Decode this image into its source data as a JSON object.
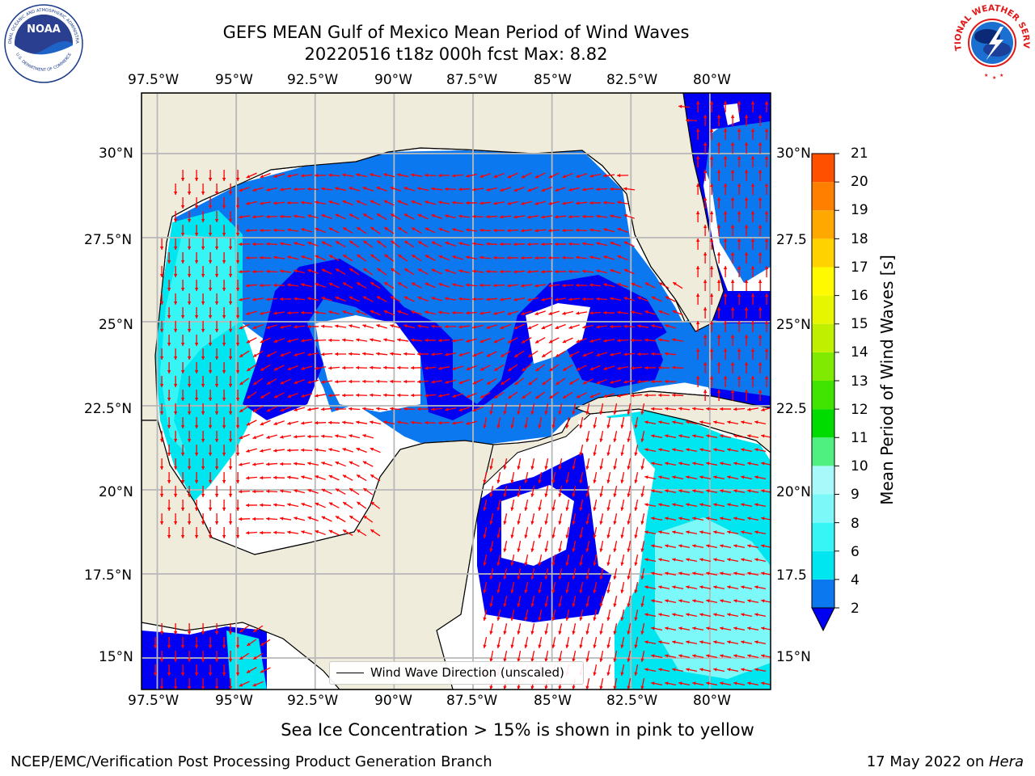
{
  "header": {
    "title_line1": "GEFS MEAN Gulf of Mexico Mean Period of Wind Waves",
    "title_line2": "20220516 t18z 000h fcst   Max: 8.82"
  },
  "logos": {
    "left": {
      "name": "NOAA",
      "ring_text": "NATIONAL OCEANIC AND ATMOSPHERIC ADMINISTRATION",
      "bottom_text": "U.S. DEPARTMENT OF COMMERCE"
    },
    "right": {
      "ring_text": "NATIONAL WEATHER SERVICE"
    }
  },
  "axes": {
    "lon_labels": [
      "97.5°W",
      "95°W",
      "92.5°W",
      "90°W",
      "87.5°W",
      "85°W",
      "82.5°W",
      "80°W"
    ],
    "lat_labels_left": [
      "30°N",
      "27.5°N",
      "25°N",
      "22.5°N",
      "20°N",
      "17.5°N",
      "15°N"
    ],
    "lat_labels_right": [
      "30°N",
      "27.5",
      "25°N",
      "22.5",
      "20°N",
      "17.5",
      "15°N"
    ]
  },
  "colorbar": {
    "label": "Mean Period of Wind Waves [s]",
    "ticks": [
      "2",
      "4",
      "6",
      "8",
      "9",
      "10",
      "11",
      "12",
      "13",
      "14",
      "15",
      "16",
      "17",
      "18",
      "19",
      "20",
      "21"
    ],
    "colors": [
      "#0c78f0",
      "#00e6f0",
      "#38f5f5",
      "#7cf8f8",
      "#a8fafa",
      "#50f080",
      "#00dc00",
      "#40e400",
      "#80ea00",
      "#c0f000",
      "#e6f500",
      "#fffa00",
      "#ffd200",
      "#ffa800",
      "#ff8000",
      "#ff5000",
      "#ff1e00"
    ],
    "under_color": "#0000f2"
  },
  "legend": {
    "label": "Wind Wave Direction (unscaled)"
  },
  "footer": {
    "note": "Sea Ice Concentration > 15% is shown in pink to yellow",
    "left": "NCEP/EMC/Verification Post Processing Product Generation Branch",
    "right_date": "17 May 2022 on ",
    "right_host": "Hera"
  }
}
